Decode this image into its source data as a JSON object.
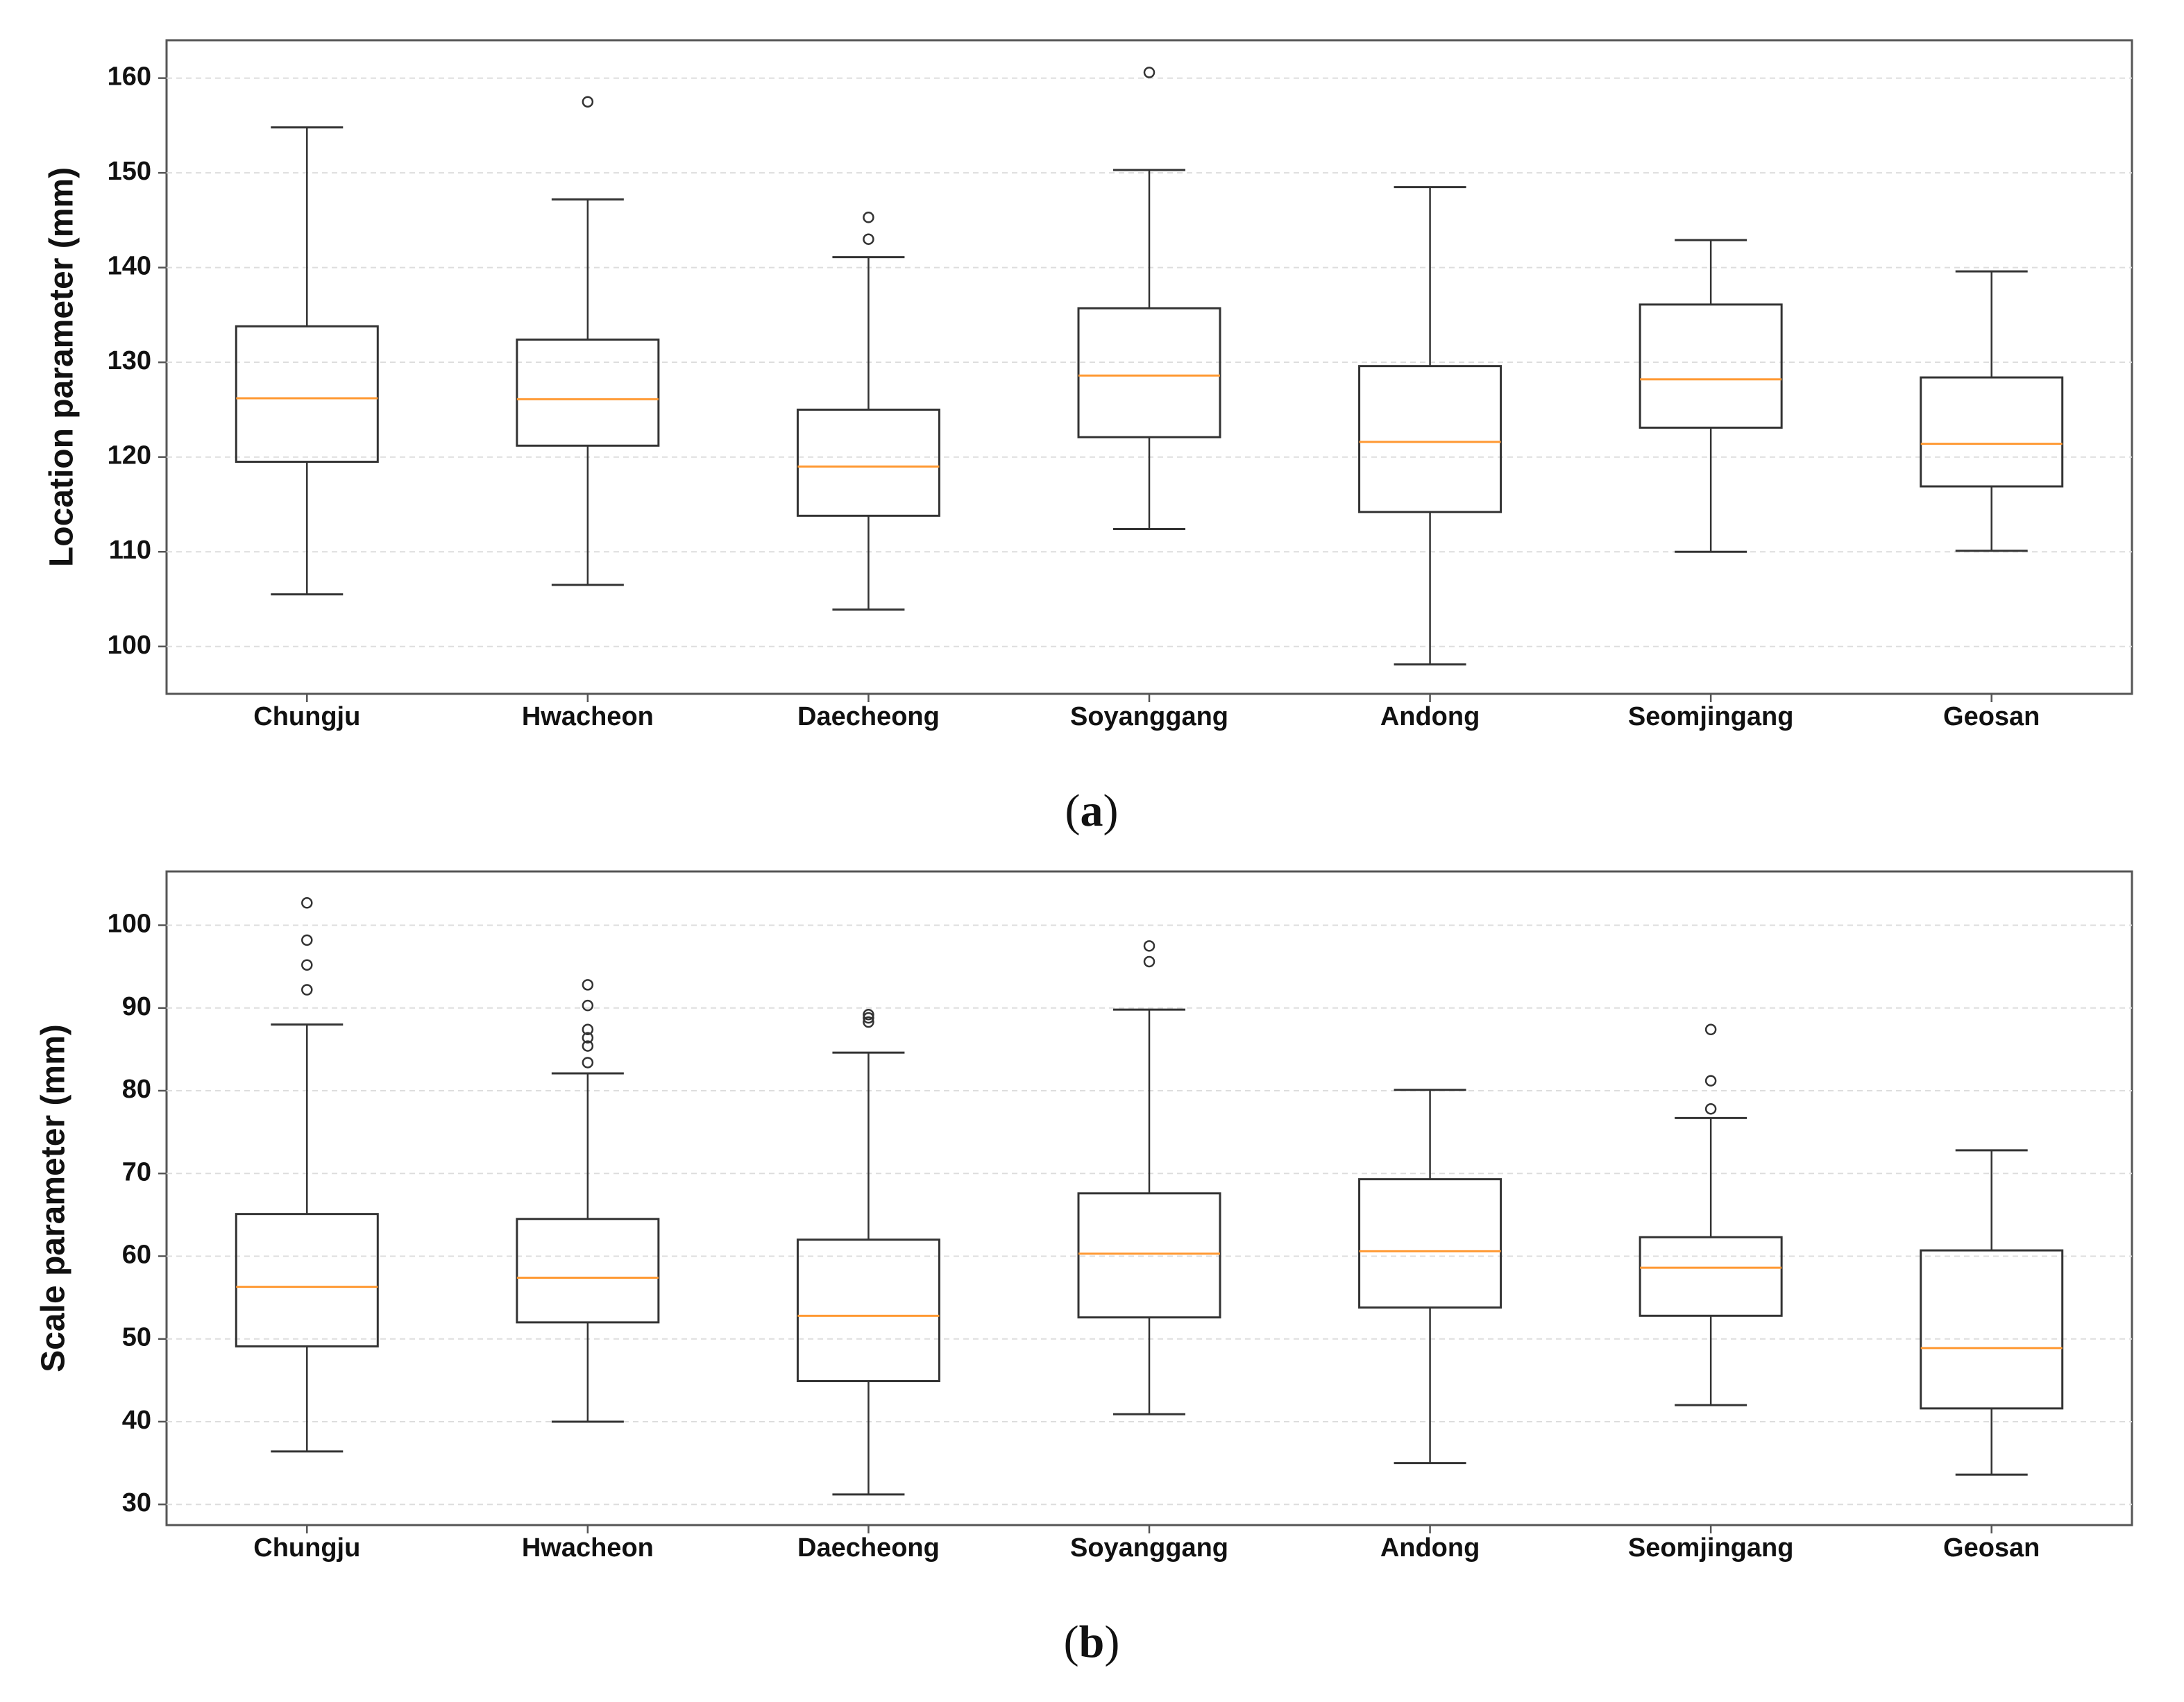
{
  "chart_data": [
    {
      "type": "boxplot",
      "caption": "(a)",
      "caption_letter": "a",
      "title": "",
      "xlabel": "",
      "ylabel": "Location parameter (mm)",
      "ylim": [
        95,
        164
      ],
      "yticks": [
        100,
        110,
        120,
        130,
        140,
        150,
        160
      ],
      "grid": "horizontal dashed",
      "categories": [
        "Chungju",
        "Hwacheon",
        "Daecheong",
        "Soyanggang",
        "Andong",
        "Seomjingang",
        "Geosan"
      ],
      "boxes": [
        {
          "whisker_low": 105.5,
          "q1": 119.5,
          "median": 126.2,
          "q3": 133.8,
          "whisker_high": 154.8,
          "outliers": []
        },
        {
          "whisker_low": 106.5,
          "q1": 121.2,
          "median": 126.1,
          "q3": 132.4,
          "whisker_high": 147.2,
          "outliers": [
            157.5
          ]
        },
        {
          "whisker_low": 103.9,
          "q1": 113.8,
          "median": 119.0,
          "q3": 125.0,
          "whisker_high": 141.1,
          "outliers": [
            143.0,
            145.3
          ]
        },
        {
          "whisker_low": 112.4,
          "q1": 122.1,
          "median": 128.6,
          "q3": 135.7,
          "whisker_high": 150.3,
          "outliers": [
            160.6
          ]
        },
        {
          "whisker_low": 98.1,
          "q1": 114.2,
          "median": 121.6,
          "q3": 129.6,
          "whisker_high": 148.5,
          "outliers": []
        },
        {
          "whisker_low": 110.0,
          "q1": 123.1,
          "median": 128.2,
          "q3": 136.1,
          "whisker_high": 142.9,
          "outliers": []
        },
        {
          "whisker_low": 110.1,
          "q1": 116.9,
          "median": 121.4,
          "q3": 128.4,
          "whisker_high": 139.6,
          "outliers": []
        }
      ]
    },
    {
      "type": "boxplot",
      "caption": "(b)",
      "caption_letter": "b",
      "title": "",
      "xlabel": "",
      "ylabel": "Scale parameter (mm)",
      "ylim": [
        27.5,
        106.5
      ],
      "yticks": [
        30,
        40,
        50,
        60,
        70,
        80,
        90,
        100
      ],
      "grid": "horizontal dashed",
      "categories": [
        "Chungju",
        "Hwacheon",
        "Daecheong",
        "Soyanggang",
        "Andong",
        "Seomjingang",
        "Geosan"
      ],
      "boxes": [
        {
          "whisker_low": 36.4,
          "q1": 49.1,
          "median": 56.3,
          "q3": 65.1,
          "whisker_high": 88.0,
          "outliers": [
            92.2,
            95.2,
            98.2,
            102.7
          ]
        },
        {
          "whisker_low": 40.0,
          "q1": 52.0,
          "median": 57.4,
          "q3": 64.5,
          "whisker_high": 82.1,
          "outliers": [
            83.4,
            85.4,
            86.4,
            87.4,
            90.3,
            92.8
          ]
        },
        {
          "whisker_low": 31.2,
          "q1": 44.9,
          "median": 52.8,
          "q3": 62.0,
          "whisker_high": 84.6,
          "outliers": [
            88.3,
            88.8,
            89.2
          ]
        },
        {
          "whisker_low": 40.9,
          "q1": 52.6,
          "median": 60.3,
          "q3": 67.6,
          "whisker_high": 89.8,
          "outliers": [
            95.6,
            97.5
          ]
        },
        {
          "whisker_low": 35.0,
          "q1": 53.8,
          "median": 60.6,
          "q3": 69.3,
          "whisker_high": 80.1,
          "outliers": []
        },
        {
          "whisker_low": 42.0,
          "q1": 52.8,
          "median": 58.6,
          "q3": 62.3,
          "whisker_high": 76.7,
          "outliers": [
            77.8,
            81.2,
            87.4
          ]
        },
        {
          "whisker_low": 33.6,
          "q1": 41.6,
          "median": 48.9,
          "q3": 60.7,
          "whisker_high": 72.8,
          "outliers": []
        }
      ]
    }
  ],
  "colors": {
    "frame": "#555555",
    "box": "#333333",
    "median": "#ff9933",
    "grid": "#dddddd",
    "outlier": "#333333",
    "background": "#ffffff"
  }
}
